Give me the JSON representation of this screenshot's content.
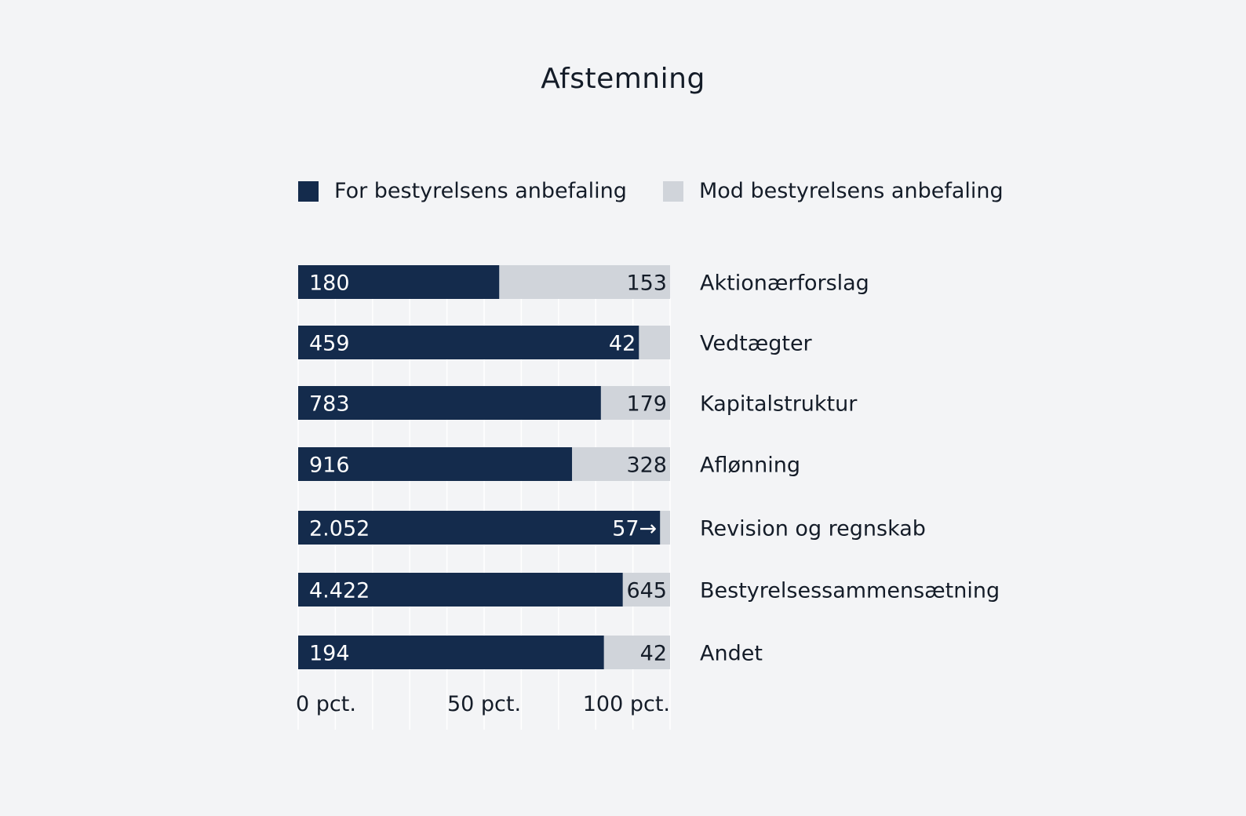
{
  "chart_data": {
    "type": "bar",
    "title": "Afstemning",
    "stacked": true,
    "normalized": true,
    "orientation": "horizontal",
    "categories": [
      "Aktionærforslag",
      "Vedtægter",
      "Kapitalstruktur",
      "Aflønning",
      "Revision og regnskab",
      "Bestyrelsessammensætning",
      "Andet"
    ],
    "series": [
      {
        "name": "For bestyrelsens anbefaling",
        "color": "#142b4c",
        "values": [
          180,
          459,
          783,
          916,
          2052,
          4422,
          194
        ],
        "labels": [
          "180",
          "459",
          "783",
          "916",
          "2.052",
          "4.422",
          "194"
        ]
      },
      {
        "name": "Mod bestyrelsens anbefaling",
        "color": "#d0d4da",
        "values": [
          153,
          42,
          179,
          328,
          57,
          645,
          42
        ],
        "labels": [
          "153",
          "42",
          "179",
          "328",
          "57→",
          "645",
          "42"
        ]
      }
    ],
    "xlabel": "",
    "ylabel": "",
    "xlim": [
      0,
      100
    ],
    "x_ticks": [
      0,
      50,
      100
    ],
    "x_tick_labels": [
      "0 pct.",
      "50 pct.",
      "100 pct."
    ],
    "grid": true,
    "legend_position": "top"
  }
}
